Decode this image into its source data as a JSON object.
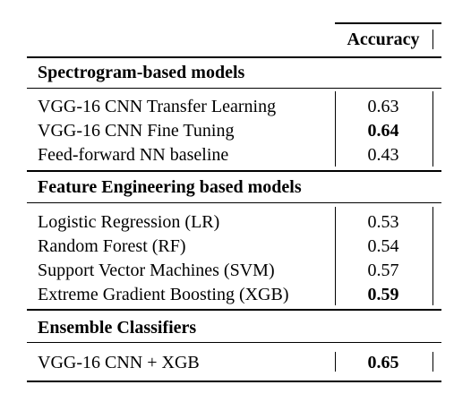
{
  "table": {
    "header": {
      "accuracy": "Accuracy"
    },
    "sections": [
      {
        "title": "Spectrogram-based models",
        "rows": [
          {
            "model": "VGG-16 CNN Transfer Learning",
            "accuracy": "0.63",
            "bold": false
          },
          {
            "model": "VGG-16 CNN Fine Tuning",
            "accuracy": "0.64",
            "bold": true
          },
          {
            "model": "Feed-forward NN baseline",
            "accuracy": "0.43",
            "bold": false
          }
        ]
      },
      {
        "title": "Feature Engineering based models",
        "rows": [
          {
            "model": "Logistic Regression (LR)",
            "accuracy": "0.53",
            "bold": false
          },
          {
            "model": "Random Forest (RF)",
            "accuracy": "0.54",
            "bold": false
          },
          {
            "model": "Support Vector Machines (SVM)",
            "accuracy": "0.57",
            "bold": false
          },
          {
            "model": "Extreme Gradient Boosting (XGB)",
            "accuracy": "0.59",
            "bold": true
          }
        ]
      },
      {
        "title": "Ensemble Classifiers",
        "rows": [
          {
            "model": "VGG-16 CNN + XGB",
            "accuracy": "0.65",
            "bold": true
          }
        ]
      }
    ]
  }
}
